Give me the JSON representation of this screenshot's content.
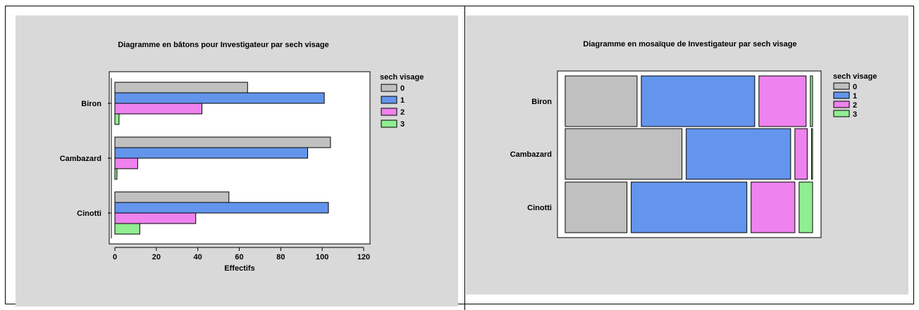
{
  "colors": {
    "panel_bg": "#d9d9d9",
    "0": "#c0c0c0",
    "1": "#6495ed",
    "2": "#ee82ee",
    "3": "#90ee90"
  },
  "chart_data": [
    {
      "type": "bar",
      "orientation": "horizontal",
      "title": "Diagramme en bâtons pour Investigateur par sech visage",
      "xlabel": "Effectifs",
      "ylabel": "",
      "categories": [
        "Biron",
        "Cambazard",
        "Cinotti"
      ],
      "legend_title": "sech visage",
      "legend_position": "top-right",
      "series": [
        {
          "name": "0",
          "values": [
            64,
            104,
            55
          ]
        },
        {
          "name": "1",
          "values": [
            101,
            93,
            103
          ]
        },
        {
          "name": "2",
          "values": [
            42,
            11,
            39
          ]
        },
        {
          "name": "3",
          "values": [
            2,
            1,
            12
          ]
        }
      ],
      "xlim": [
        0,
        120
      ],
      "xticks": [
        "0",
        "20",
        "40",
        "60",
        "80",
        "100",
        "120"
      ]
    },
    {
      "type": "mosaic",
      "title": "Diagramme en mosaïque de Investigateur par sech visage",
      "categories": [
        "Biron",
        "Cambazard",
        "Cinotti"
      ],
      "legend_title": "sech visage",
      "legend_position": "top-right",
      "series": [
        {
          "name": "0",
          "values": [
            64,
            104,
            55
          ]
        },
        {
          "name": "1",
          "values": [
            101,
            93,
            103
          ]
        },
        {
          "name": "2",
          "values": [
            42,
            11,
            39
          ]
        },
        {
          "name": "3",
          "values": [
            2,
            1,
            12
          ]
        }
      ]
    }
  ]
}
